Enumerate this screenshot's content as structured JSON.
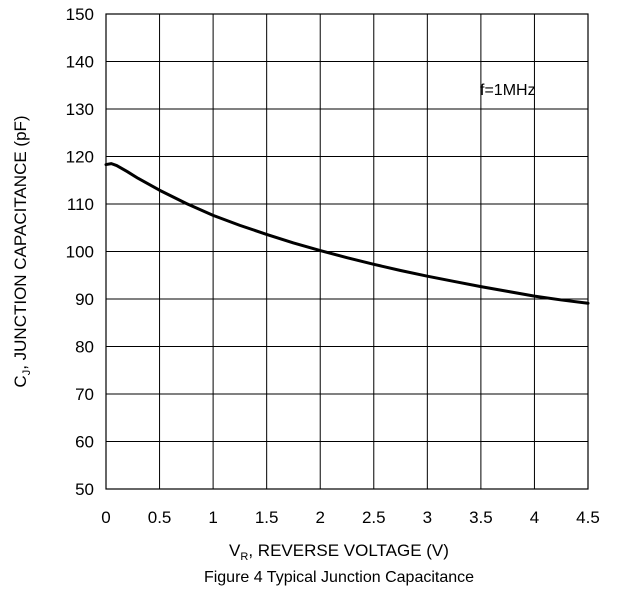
{
  "chart_data": {
    "type": "line",
    "title": "",
    "caption": "Figure 4 Typical Junction Capacitance",
    "xlabel_main": "V",
    "xlabel_sub": "R",
    "xlabel_rest": ", REVERSE VOLTAGE (V)",
    "ylabel_main": "C",
    "ylabel_sub": "J",
    "ylabel_rest": ", JUNCTION CAPACITANCE (pF)",
    "annotation": "f=1MHz",
    "xlim": [
      0,
      4.5
    ],
    "ylim": [
      50,
      150
    ],
    "xticks": [
      "0",
      "0.5",
      "1",
      "1.5",
      "2",
      "2.5",
      "3",
      "3.5",
      "4",
      "4.5"
    ],
    "yticks": [
      "50",
      "60",
      "70",
      "80",
      "90",
      "100",
      "110",
      "120",
      "130",
      "140",
      "150"
    ],
    "grid": true,
    "series": [
      {
        "color": "#000000",
        "x": [
          0,
          0.05,
          0.1,
          0.2,
          0.3,
          0.5,
          0.75,
          1.0,
          1.25,
          1.5,
          1.75,
          2.0,
          2.25,
          2.5,
          2.75,
          3.0,
          3.25,
          3.5,
          3.75,
          4.0,
          4.25,
          4.5
        ],
        "y": [
          118.3,
          118.5,
          118.1,
          116.8,
          115.4,
          112.9,
          110.1,
          107.6,
          105.5,
          103.6,
          101.8,
          100.2,
          98.7,
          97.3,
          96.0,
          94.8,
          93.7,
          92.6,
          91.6,
          90.6,
          89.8,
          89.1
        ]
      }
    ]
  }
}
